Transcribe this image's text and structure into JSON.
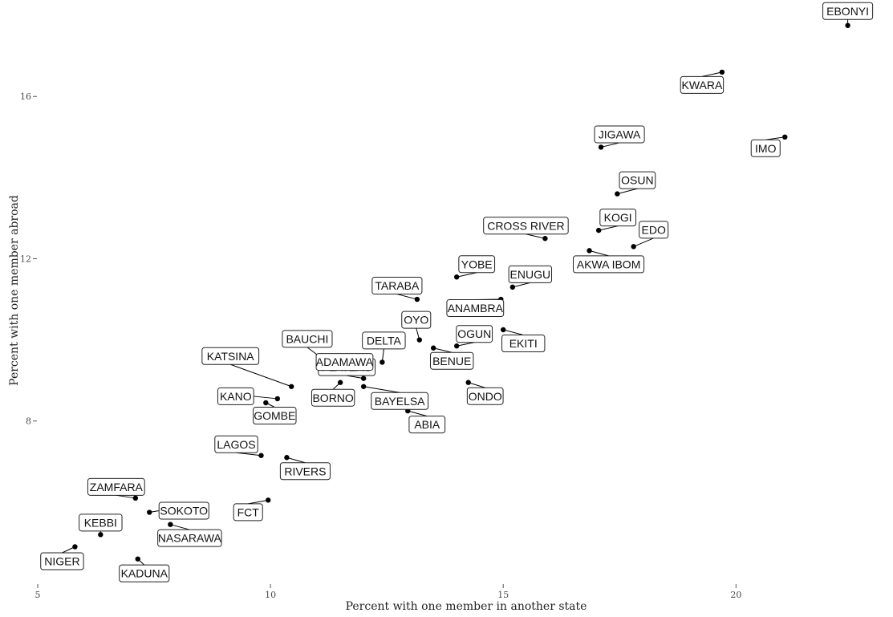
{
  "chart_data": {
    "type": "scatter",
    "xlabel": "Percent with one member in another state",
    "ylabel": "Percent with one member abroad",
    "xlim": [
      5,
      23.2
    ],
    "ylim": [
      4,
      18.2
    ],
    "xticks": [
      "5",
      "10",
      "15",
      "20"
    ],
    "yticks": [
      "8",
      "12",
      "16"
    ],
    "grid": false,
    "legend": "none",
    "point_color": "#000000",
    "points": [
      {
        "label": "EBONYI",
        "x": 22.4,
        "y": 17.75
      },
      {
        "label": "KWARA",
        "x": 19.7,
        "y": 16.6
      },
      {
        "label": "IMO",
        "x": 21.05,
        "y": 15.0
      },
      {
        "label": "JIGAWA",
        "x": 17.1,
        "y": 14.75
      },
      {
        "label": "OSUN",
        "x": 17.45,
        "y": 13.6
      },
      {
        "label": "KOGI",
        "x": 17.05,
        "y": 12.7
      },
      {
        "label": "EDO",
        "x": 17.8,
        "y": 12.3
      },
      {
        "label": "CROSS RIVER",
        "x": 15.9,
        "y": 12.5
      },
      {
        "label": "AKWA IBOM",
        "x": 16.85,
        "y": 12.2
      },
      {
        "label": "YOBE",
        "x": 14.0,
        "y": 11.55
      },
      {
        "label": "ENUGU",
        "x": 15.2,
        "y": 11.3
      },
      {
        "label": "TARABA",
        "x": 13.15,
        "y": 11.0
      },
      {
        "label": "ANAMBRA",
        "x": 14.95,
        "y": 11.0
      },
      {
        "label": "OYO",
        "x": 13.2,
        "y": 10.0
      },
      {
        "label": "OGUN",
        "x": 14.0,
        "y": 9.85
      },
      {
        "label": "EKITI",
        "x": 15.0,
        "y": 10.25
      },
      {
        "label": "BENUE",
        "x": 13.5,
        "y": 9.8
      },
      {
        "label": "DELTA",
        "x": 12.4,
        "y": 9.45
      },
      {
        "label": "BAUCHI",
        "x": 11.1,
        "y": 9.55
      },
      {
        "label": "PLATEAU",
        "x": 12.0,
        "y": 9.05
      },
      {
        "label": "KATSINA",
        "x": 10.45,
        "y": 8.85
      },
      {
        "label": "ADAMAWA",
        "x": 11.35,
        "y": 9.2
      },
      {
        "label": "BORNO",
        "x": 11.5,
        "y": 8.95
      },
      {
        "label": "BAYELSA",
        "x": 12.0,
        "y": 8.85
      },
      {
        "label": "ONDO",
        "x": 14.25,
        "y": 8.95
      },
      {
        "label": "KANO",
        "x": 10.15,
        "y": 8.55
      },
      {
        "label": "GOMBE",
        "x": 9.9,
        "y": 8.45
      },
      {
        "label": "ABIA",
        "x": 12.95,
        "y": 8.25
      },
      {
        "label": "LAGOS",
        "x": 9.8,
        "y": 7.15
      },
      {
        "label": "RIVERS",
        "x": 10.35,
        "y": 7.1
      },
      {
        "label": "ZAMFARA",
        "x": 7.1,
        "y": 6.1
      },
      {
        "label": "SOKOTO",
        "x": 7.4,
        "y": 5.75
      },
      {
        "label": "FCT",
        "x": 9.95,
        "y": 6.05
      },
      {
        "label": "KEBBI",
        "x": 6.35,
        "y": 5.2
      },
      {
        "label": "NASARAWA",
        "x": 7.85,
        "y": 5.45
      },
      {
        "label": "NIGER",
        "x": 5.8,
        "y": 4.9
      },
      {
        "label": "KADUNA",
        "x": 7.15,
        "y": 4.6
      }
    ]
  }
}
